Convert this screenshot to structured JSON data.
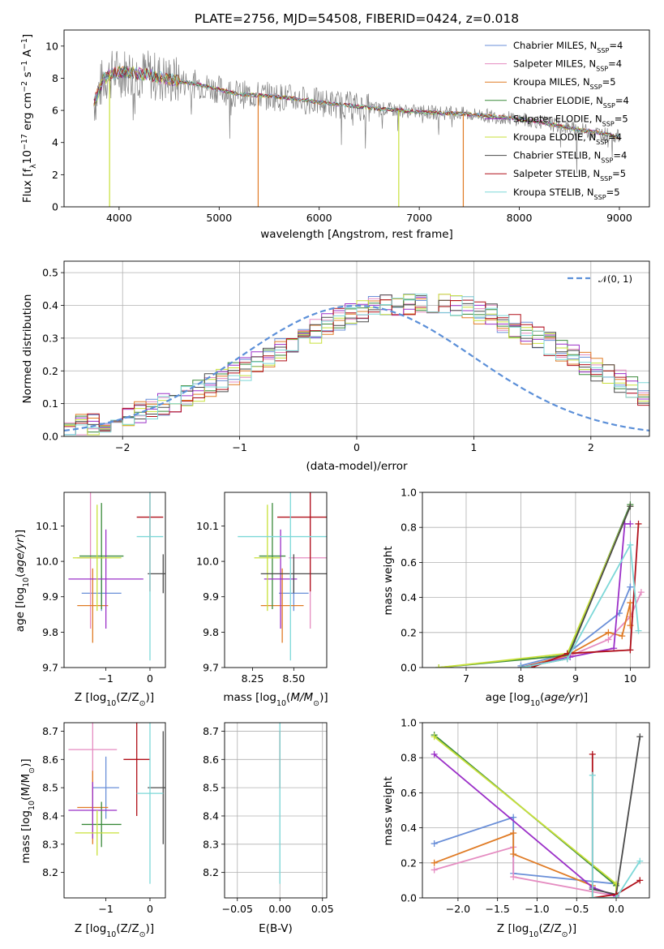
{
  "title": "PLATE=2756, MJD=54508, FIBERID=0424, z=0.018",
  "colors": {
    "chabrier_miles": "#6a8fd8",
    "salpeter_miles": "#e58cc1",
    "kroupa_miles": "#e07b25",
    "chabrier_elodie": "#3a8a3a",
    "salpeter_elodie": "#9b30c8",
    "kroupa_elodie": "#c8e03a",
    "chabrier_stelib": "#4a4a4a",
    "salpeter_stelib": "#b0101a",
    "kroupa_stelib": "#7dd8d8",
    "data": "#808080",
    "normal": "#5b8fd8"
  },
  "legend": [
    {
      "key": "chabrier_miles",
      "label": "Chabrier MILES, N",
      "sub": "SSP",
      "suffix": "=4"
    },
    {
      "key": "salpeter_miles",
      "label": "Salpeter MILES, N",
      "sub": "SSP",
      "suffix": "=4"
    },
    {
      "key": "kroupa_miles",
      "label": "Kroupa MILES, N",
      "sub": "SSP",
      "suffix": "=5"
    },
    {
      "key": "chabrier_elodie",
      "label": "Chabrier ELODIE, N",
      "sub": "SSP",
      "suffix": "=4"
    },
    {
      "key": "salpeter_elodie",
      "label": "Salpeter ELODIE, N",
      "sub": "SSP",
      "suffix": "=5"
    },
    {
      "key": "kroupa_elodie",
      "label": "Kroupa ELODIE, N",
      "sub": "SSP",
      "suffix": "=4"
    },
    {
      "key": "chabrier_stelib",
      "label": "Chabrier STELIB, N",
      "sub": "SSP",
      "suffix": "=4"
    },
    {
      "key": "salpeter_stelib",
      "label": "Salpeter STELIB, N",
      "sub": "SSP",
      "suffix": "=5"
    },
    {
      "key": "kroupa_stelib",
      "label": "Kroupa STELIB, N",
      "sub": "SSP",
      "suffix": "=5"
    }
  ],
  "chart_data": [
    {
      "id": "spectrum",
      "type": "line",
      "xlabel": "wavelength [Angstrom, rest frame]",
      "ylabel": "Flux [f",
      "ylabel_parts": {
        "lambda": "λ",
        "pow": "10",
        "exp": "−17",
        "mid": " erg cm",
        "exp2": "−2",
        "s": " s",
        "exp3": "−1",
        "A": " A",
        "exp4": "−1",
        "close": "]"
      },
      "xlim": [
        3450,
        9300
      ],
      "ylim": [
        0,
        11
      ],
      "xticks": [
        4000,
        5000,
        6000,
        7000,
        8000,
        9000
      ],
      "yticks": [
        0,
        2,
        4,
        6,
        8,
        10
      ],
      "continuum": [
        [
          3750,
          6.5
        ],
        [
          3850,
          8.0
        ],
        [
          3950,
          8.3
        ],
        [
          4050,
          8.4
        ],
        [
          4300,
          8.2
        ],
        [
          4500,
          7.9
        ],
        [
          4800,
          7.6
        ],
        [
          5000,
          7.3
        ],
        [
          5200,
          7.0
        ],
        [
          5500,
          6.9
        ],
        [
          5800,
          6.7
        ],
        [
          6000,
          6.5
        ],
        [
          6300,
          6.3
        ],
        [
          6600,
          6.1
        ],
        [
          7000,
          5.9
        ],
        [
          7400,
          5.8
        ],
        [
          7800,
          5.6
        ],
        [
          8200,
          5.3
        ],
        [
          8500,
          4.9
        ],
        [
          8800,
          4.6
        ],
        [
          9000,
          4.35
        ]
      ],
      "drops": [
        {
          "x": 3905,
          "key": "kroupa_elodie"
        },
        {
          "x": 5390,
          "key": "kroupa_miles"
        },
        {
          "x": 6795,
          "key": "kroupa_elodie"
        },
        {
          "x": 7440,
          "key": "kroupa_miles"
        }
      ]
    },
    {
      "id": "residuals",
      "type": "step",
      "xlabel": "(data-model)/error",
      "ylabel": "Normed distribution",
      "xlim": [
        -2.5,
        2.5
      ],
      "ylim": [
        0,
        0.535
      ],
      "xticks": [
        -2,
        -1,
        0,
        1,
        2
      ],
      "xticklabels": [
        "−2",
        "−1",
        "0",
        "1",
        "2"
      ],
      "yticks": [
        0.0,
        0.1,
        0.2,
        0.3,
        0.4,
        0.5
      ],
      "yticklabels": [
        "0.0",
        "0.1",
        "0.2",
        "0.3",
        "0.4",
        "0.5"
      ],
      "bin_width": 0.1,
      "bin_start": -2.5,
      "base_heights": [
        0.025,
        0.03,
        0.036,
        0.043,
        0.051,
        0.06,
        0.071,
        0.082,
        0.095,
        0.108,
        0.123,
        0.138,
        0.155,
        0.172,
        0.19,
        0.208,
        0.227,
        0.246,
        0.266,
        0.285,
        0.304,
        0.322,
        0.339,
        0.355,
        0.369,
        0.381,
        0.392,
        0.4,
        0.406,
        0.409,
        0.41,
        0.409,
        0.405,
        0.399,
        0.391,
        0.38,
        0.367,
        0.352,
        0.336,
        0.319,
        0.301,
        0.282,
        0.262,
        0.242,
        0.222,
        0.203,
        0.184,
        0.166,
        0.148,
        0.132,
        0.116
      ],
      "legend_label": "𝒩(0, 1)"
    },
    {
      "id": "age_vs_Z",
      "type": "errorbar",
      "xlabel": "Z [log",
      "xlabel_tail": "(Z/Z",
      "ylabel": "age  [log",
      "ylabel_tail": "(age/yr)]",
      "xlim": [
        -1.95,
        0.35
      ],
      "ylim": [
        9.7,
        10.195
      ],
      "xticks": [
        -1,
        0
      ],
      "xticklabels": [
        "−1",
        "0"
      ],
      "yticks": [
        9.7,
        9.8,
        9.9,
        10.0,
        10.1
      ],
      "yticklabels": [
        "9.7",
        "9.8",
        "9.9",
        "10.0",
        "10.1"
      ],
      "points": [
        {
          "key": "chabrier_miles",
          "x": -1.1,
          "xerr": 0.45,
          "y": 9.91,
          "yerr": 0.05
        },
        {
          "key": "salpeter_miles",
          "x": -1.35,
          "xerr": 0.3,
          "y": 10.01,
          "yerr": 0.2
        },
        {
          "key": "kroupa_miles",
          "x": -1.3,
          "xerr": 0.35,
          "y": 9.875,
          "yerr": 0.105
        },
        {
          "key": "chabrier_elodie",
          "x": -1.1,
          "xerr": 0.5,
          "y": 10.015,
          "yerr": 0.15
        },
        {
          "key": "salpeter_elodie",
          "x": -1.0,
          "xerr": 0.85,
          "y": 9.95,
          "yerr": 0.14
        },
        {
          "key": "kroupa_elodie",
          "x": -1.2,
          "xerr": 0.55,
          "y": 10.01,
          "yerr": 0.15
        },
        {
          "key": "chabrier_stelib",
          "x": 0.3,
          "xerr": 0.35,
          "y": 9.965,
          "yerr": 0.055
        },
        {
          "key": "salpeter_stelib",
          "x": 0.0,
          "xerr": 0.3,
          "y": 10.125,
          "yerr": 0.21
        },
        {
          "key": "kroupa_stelib",
          "x": 0.0,
          "xerr": 0.3,
          "y": 10.07,
          "yerr": 0.35
        }
      ]
    },
    {
      "id": "age_vs_mass",
      "type": "errorbar",
      "xlabel": "mass [log",
      "xlabel_tail": "(M/M",
      "xlim": [
        8.08,
        8.7
      ],
      "ylim": [
        9.7,
        10.195
      ],
      "xticks": [
        8.25,
        8.5
      ],
      "xticklabels": [
        "8.25",
        "8.50"
      ],
      "yticks": [
        9.7,
        9.8,
        9.9,
        10.0,
        10.1
      ],
      "yticklabels": [
        "9.7",
        "9.8",
        "9.9",
        "10.0",
        "10.1"
      ],
      "points": [
        {
          "key": "chabrier_miles",
          "x": 8.5,
          "xerr": 0.09,
          "y": 9.91,
          "yerr": 0.05
        },
        {
          "key": "salpeter_miles",
          "x": 8.6,
          "xerr": 0.13,
          "y": 10.01,
          "yerr": 0.2
        },
        {
          "key": "kroupa_miles",
          "x": 8.43,
          "xerr": 0.13,
          "y": 9.875,
          "yerr": 0.105
        },
        {
          "key": "chabrier_elodie",
          "x": 8.37,
          "xerr": 0.08,
          "y": 10.015,
          "yerr": 0.15
        },
        {
          "key": "salpeter_elodie",
          "x": 8.42,
          "xerr": 0.1,
          "y": 9.95,
          "yerr": 0.14
        },
        {
          "key": "kroupa_elodie",
          "x": 8.34,
          "xerr": 0.08,
          "y": 10.01,
          "yerr": 0.15
        },
        {
          "key": "chabrier_stelib",
          "x": 8.5,
          "xerr": 0.2,
          "y": 9.965,
          "yerr": 0.055
        },
        {
          "key": "salpeter_stelib",
          "x": 8.6,
          "xerr": 0.2,
          "y": 10.125,
          "yerr": 0.21
        },
        {
          "key": "kroupa_stelib",
          "x": 8.48,
          "xerr": 0.32,
          "y": 10.07,
          "yerr": 0.35
        }
      ]
    },
    {
      "id": "massweight_vs_age",
      "type": "line",
      "xlabel": "age  [log",
      "xlabel_tail": "(age/yr)]",
      "ylabel": "mass weight",
      "xlim": [
        6.2,
        10.35
      ],
      "ylim": [
        0,
        1.0
      ],
      "xticks": [
        7,
        8,
        9,
        10
      ],
      "xticklabels": [
        "7",
        "8",
        "9",
        "10"
      ],
      "yticks": [
        0.0,
        0.2,
        0.4,
        0.6,
        0.8,
        1.0
      ],
      "yticklabels": [
        "0.0",
        "0.2",
        "0.4",
        "0.6",
        "0.8",
        "1.0"
      ],
      "series": [
        {
          "key": "chabrier_miles",
          "x": [
            8.0,
            8.85,
            9.8,
            10.0,
            10.0
          ],
          "y": [
            0.01,
            0.08,
            0.31,
            0.46,
            0.46
          ]
        },
        {
          "key": "salpeter_miles",
          "x": [
            8.0,
            8.85,
            9.6,
            10.0,
            10.2
          ],
          "y": [
            0.0,
            0.06,
            0.16,
            0.29,
            0.43
          ]
        },
        {
          "key": "kroupa_miles",
          "x": [
            8.0,
            8.85,
            9.6,
            9.85,
            10.0,
            10.0
          ],
          "y": [
            0.0,
            0.07,
            0.2,
            0.18,
            0.37,
            0.24
          ]
        },
        {
          "key": "chabrier_elodie",
          "x": [
            6.5,
            8.85,
            10.0
          ],
          "y": [
            0.0,
            0.07,
            0.93
          ]
        },
        {
          "key": "salpeter_elodie",
          "x": [
            8.0,
            8.9,
            9.7,
            9.9,
            10.0
          ],
          "y": [
            0.0,
            0.06,
            0.11,
            0.82,
            0.82
          ]
        },
        {
          "key": "kroupa_elodie",
          "x": [
            6.5,
            8.85,
            10.0
          ],
          "y": [
            0.0,
            0.08,
            0.92
          ]
        },
        {
          "key": "chabrier_stelib",
          "x": [
            8.0,
            8.85,
            10.0
          ],
          "y": [
            0.0,
            0.05,
            0.92
          ]
        },
        {
          "key": "salpeter_stelib",
          "x": [
            8.2,
            8.85,
            10.0,
            10.15
          ],
          "y": [
            0.0,
            0.08,
            0.1,
            0.82
          ]
        },
        {
          "key": "kroupa_stelib",
          "x": [
            8.0,
            8.85,
            10.0,
            10.15
          ],
          "y": [
            0.0,
            0.05,
            0.7,
            0.21
          ]
        }
      ]
    },
    {
      "id": "mass_vs_Z",
      "type": "errorbar",
      "xlabel": "Z [log",
      "xlabel_tail": "(Z/Z",
      "ylabel": "mass [log",
      "ylabel_tail": "(M/M",
      "xlim": [
        -1.95,
        0.35
      ],
      "ylim": [
        8.11,
        8.73
      ],
      "xticks": [
        -1,
        0
      ],
      "xticklabels": [
        "−1",
        "0"
      ],
      "yticks": [
        8.2,
        8.3,
        8.4,
        8.5,
        8.6,
        8.7
      ],
      "yticklabels": [
        "8.2",
        "8.3",
        "8.4",
        "8.5",
        "8.6",
        "8.7"
      ],
      "points": [
        {
          "key": "chabrier_miles",
          "x": -1.0,
          "xerr": 0.3,
          "y": 8.5,
          "yerr": 0.11
        },
        {
          "key": "salpeter_miles",
          "x": -1.3,
          "xerr": 0.55,
          "y": 8.635,
          "yerr": 0.15
        },
        {
          "key": "kroupa_miles",
          "x": -1.3,
          "xerr": 0.35,
          "y": 8.43,
          "yerr": 0.13
        },
        {
          "key": "chabrier_elodie",
          "x": -1.1,
          "xerr": 0.45,
          "y": 8.37,
          "yerr": 0.08
        },
        {
          "key": "salpeter_elodie",
          "x": -1.3,
          "xerr": 0.55,
          "y": 8.42,
          "yerr": 0.1
        },
        {
          "key": "kroupa_elodie",
          "x": -1.2,
          "xerr": 0.5,
          "y": 8.34,
          "yerr": 0.08
        },
        {
          "key": "chabrier_stelib",
          "x": 0.3,
          "xerr": 0.35,
          "y": 8.5,
          "yerr": 0.2
        },
        {
          "key": "salpeter_stelib",
          "x": -0.3,
          "xerr": 0.3,
          "y": 8.6,
          "yerr": 0.2
        },
        {
          "key": "kroupa_stelib",
          "x": 0.0,
          "xerr": 0.3,
          "y": 8.48,
          "yerr": 0.32
        }
      ]
    },
    {
      "id": "mass_vs_ebv",
      "type": "errorbar",
      "xlabel": "E(B-V)",
      "xlim": [
        -0.065,
        0.055
      ],
      "ylim": [
        8.11,
        8.73
      ],
      "xticks": [
        -0.05,
        0.0,
        0.05
      ],
      "xticklabels": [
        "−0.05",
        "0.00",
        "0.05"
      ],
      "yticks": [
        8.2,
        8.3,
        8.4,
        8.5,
        8.6,
        8.7
      ],
      "yticklabels": [
        "8.2",
        "8.3",
        "8.4",
        "8.5",
        "8.6",
        "8.7"
      ],
      "points": [
        {
          "key": "salpeter_stelib",
          "x": 0.0,
          "xerr": 0.0,
          "y": 8.6,
          "yerr": 0.1
        },
        {
          "key": "kroupa_stelib",
          "x": 0.0,
          "xerr": 0.0,
          "y": 8.48,
          "yerr": 0.32
        }
      ]
    },
    {
      "id": "massweight_vs_Z",
      "type": "line",
      "xlabel": "Z [log",
      "xlabel_tail": "(Z/Z",
      "ylabel": "mass weight",
      "xlim": [
        -2.45,
        0.42
      ],
      "ylim": [
        0,
        1.0
      ],
      "xticks": [
        -2.0,
        -1.5,
        -1.0,
        -0.5,
        0.0
      ],
      "xticklabels": [
        "−2.0",
        "−1.5",
        "−1.0",
        "−0.5",
        "0.0"
      ],
      "yticks": [
        0.0,
        0.2,
        0.4,
        0.6,
        0.8,
        1.0
      ],
      "yticklabels": [
        "0.0",
        "0.2",
        "0.4",
        "0.6",
        "0.8",
        "1.0"
      ],
      "series": [
        {
          "key": "chabrier_miles",
          "x": [
            -2.3,
            -1.3,
            -1.3,
            0.0,
            0.0
          ],
          "y": [
            0.31,
            0.46,
            0.14,
            0.08,
            0.01
          ]
        },
        {
          "key": "salpeter_miles",
          "x": [
            -2.3,
            -1.3,
            -1.3,
            0.0
          ],
          "y": [
            0.16,
            0.29,
            0.12,
            0.01
          ]
        },
        {
          "key": "kroupa_miles",
          "x": [
            -2.3,
            -1.3,
            -1.3,
            -0.3,
            -0.3,
            0.0
          ],
          "y": [
            0.2,
            0.37,
            0.25,
            0.07,
            0.0,
            0.0
          ]
        },
        {
          "key": "chabrier_elodie",
          "x": [
            -2.3,
            0.0,
            0.0
          ],
          "y": [
            0.93,
            0.07,
            0.0
          ]
        },
        {
          "key": "salpeter_elodie",
          "x": [
            -2.3,
            -0.3,
            0.0
          ],
          "y": [
            0.82,
            0.06,
            0.01
          ]
        },
        {
          "key": "kroupa_elodie",
          "x": [
            -2.3,
            0.0,
            0.0
          ],
          "y": [
            0.92,
            0.08,
            0.0
          ]
        },
        {
          "key": "chabrier_stelib",
          "x": [
            -0.3,
            0.0,
            0.3
          ],
          "y": [
            0.05,
            0.02,
            0.92
          ]
        },
        {
          "key": "salpeter_stelib",
          "x": [
            -0.3,
            -0.3,
            0.0,
            0.3
          ],
          "y": [
            0.82,
            0.0,
            0.02,
            0.1
          ]
        },
        {
          "key": "kroupa_stelib",
          "x": [
            -0.3,
            -0.3,
            0.0,
            0.3
          ],
          "y": [
            0.7,
            0.0,
            0.0,
            0.21
          ]
        }
      ]
    }
  ]
}
